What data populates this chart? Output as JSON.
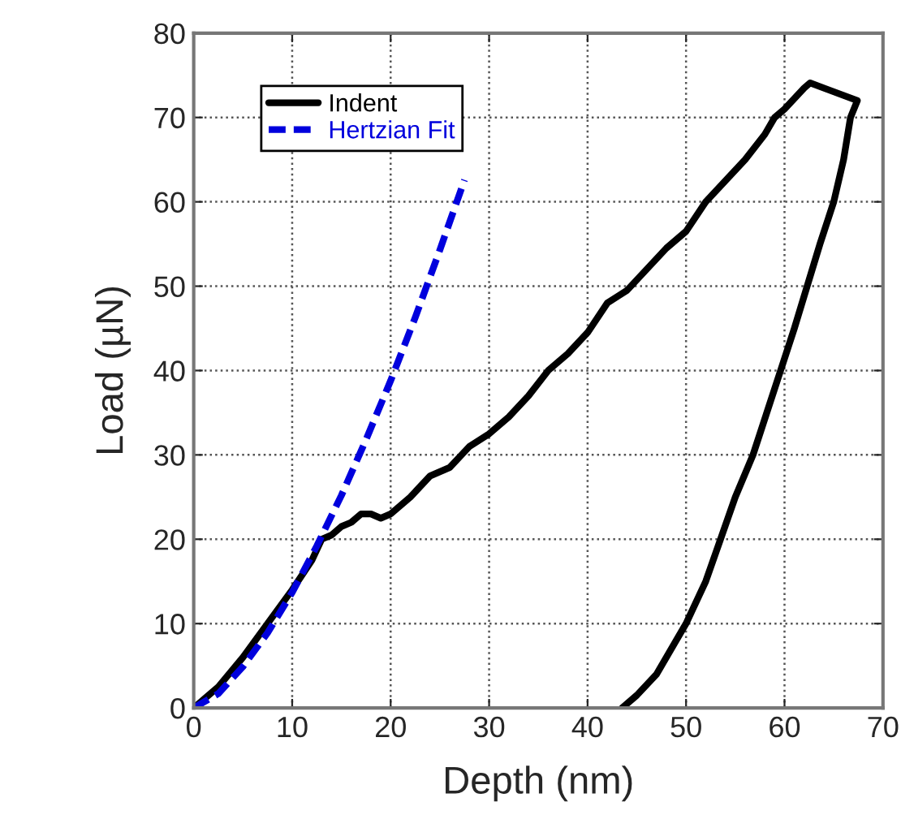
{
  "chart_data": {
    "type": "line",
    "xlabel": "Depth (nm)",
    "ylabel": "Load (µN)",
    "xlim": [
      0,
      70
    ],
    "ylim": [
      0,
      80
    ],
    "xticks": [
      0,
      10,
      20,
      30,
      40,
      50,
      60,
      70
    ],
    "yticks": [
      0,
      10,
      20,
      30,
      40,
      50,
      60,
      70,
      80
    ],
    "grid": true,
    "legend": "top left",
    "series": [
      {
        "name": "Indent",
        "color": "#000000",
        "line_style": "solid",
        "x": [
          0,
          2.5,
          5,
          7.5,
          10,
          12,
          13,
          14,
          15,
          16,
          17,
          18,
          19,
          20,
          22,
          24,
          26,
          28,
          30,
          32,
          34,
          36,
          38,
          40,
          42,
          44,
          46,
          48,
          50,
          52,
          54,
          56,
          58,
          59,
          60,
          62,
          62.6,
          67.4,
          66.7,
          66,
          65,
          63.6,
          62.3,
          61,
          59.6,
          58.2,
          56.8,
          55,
          53.5,
          52,
          50,
          48.5,
          47,
          45,
          43.5
        ],
        "values": [
          0,
          2.5,
          6,
          10,
          14,
          17.5,
          20,
          20.5,
          21.5,
          22,
          23,
          23,
          22.5,
          23,
          25,
          27.5,
          28.5,
          31,
          32.5,
          34.5,
          37,
          40,
          42,
          44.5,
          48,
          49.5,
          52,
          54.5,
          56.5,
          60,
          62.5,
          65,
          68,
          70,
          71,
          73.5,
          74.1,
          72,
          70,
          65,
          60,
          55,
          50,
          45,
          40,
          35,
          30,
          25,
          20,
          15,
          10,
          7,
          4,
          1.5,
          0
        ]
      },
      {
        "name": "Hertzian Fit",
        "color": "#0000dd",
        "line_style": "dashed",
        "x": [
          0,
          2.5,
          5,
          7.5,
          10,
          12.5,
          15,
          17.5,
          20,
          22.5,
          25,
          27.5
        ],
        "values": [
          0,
          1.7,
          4.9,
          8.9,
          13.7,
          19.2,
          25.2,
          31.8,
          38.8,
          46.3,
          54.3,
          62.6
        ]
      }
    ]
  }
}
